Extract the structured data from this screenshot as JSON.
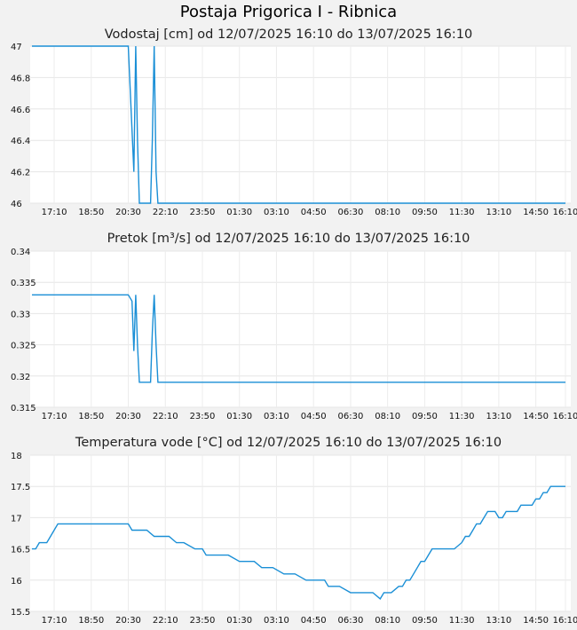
{
  "title": "Postaja Prigorica I - Ribnica",
  "series_color": "#1a8fd6",
  "chart_data": [
    {
      "type": "line",
      "title": "Vodostaj [cm] od 12/07/2025 16:10 do 13/07/2025 16:10",
      "x_ticks": [
        "17:10",
        "18:50",
        "20:30",
        "22:10",
        "23:50",
        "01:30",
        "03:10",
        "04:50",
        "06:30",
        "08:10",
        "09:50",
        "11:30",
        "13:10",
        "14:50",
        "16:10"
      ],
      "y_ticks": [
        "47",
        "46.8",
        "46.6",
        "46.4",
        "46.2",
        "46"
      ],
      "ylim": [
        46,
        47
      ],
      "grid": true,
      "x": [
        "16:10",
        "19:00",
        "20:30",
        "20:45",
        "20:50",
        "20:55",
        "21:00",
        "21:05",
        "21:10",
        "21:20",
        "21:30",
        "21:35",
        "21:40",
        "21:45",
        "21:50",
        "21:55",
        "22:00",
        "16:10"
      ],
      "y": [
        47,
        47,
        47,
        46.2,
        47,
        46.4,
        46,
        46,
        46,
        46,
        46,
        46.4,
        47,
        46.2,
        46,
        46,
        46,
        46
      ]
    },
    {
      "type": "line",
      "title": "Pretok [m³/s] od 12/07/2025 16:10 do 13/07/2025 16:10",
      "x_ticks": [
        "17:10",
        "18:50",
        "20:30",
        "22:10",
        "23:50",
        "01:30",
        "03:10",
        "04:50",
        "06:30",
        "08:10",
        "09:50",
        "11:30",
        "13:10",
        "14:50",
        "16:10"
      ],
      "y_ticks": [
        "0.34",
        "0.335",
        "0.33",
        "0.325",
        "0.32",
        "0.315"
      ],
      "ylim": [
        0.315,
        0.34
      ],
      "grid": true,
      "x": [
        "16:10",
        "19:00",
        "20:30",
        "20:40",
        "20:45",
        "20:50",
        "20:55",
        "21:00",
        "21:05",
        "21:10",
        "21:20",
        "21:30",
        "21:35",
        "21:40",
        "21:45",
        "21:50",
        "21:55",
        "22:00",
        "16:10"
      ],
      "y": [
        0.333,
        0.333,
        0.333,
        0.332,
        0.324,
        0.333,
        0.325,
        0.319,
        0.319,
        0.319,
        0.319,
        0.319,
        0.327,
        0.333,
        0.325,
        0.319,
        0.319,
        0.319,
        0.319
      ]
    },
    {
      "type": "line",
      "title": "Temperatura vode [°C] od 12/07/2025 16:10 do 13/07/2025 16:10",
      "x_ticks": [
        "17:10",
        "18:50",
        "20:30",
        "22:10",
        "23:50",
        "01:30",
        "03:10",
        "04:50",
        "06:30",
        "08:10",
        "09:50",
        "11:30",
        "13:10",
        "14:50",
        "16:10"
      ],
      "y_ticks": [
        "18",
        "17.5",
        "17",
        "16.5",
        "16",
        "15.5"
      ],
      "ylim": [
        15.5,
        18
      ],
      "grid": true,
      "x": [
        "16:10",
        "16:20",
        "16:30",
        "16:50",
        "17:00",
        "17:10",
        "17:20",
        "18:00",
        "20:30",
        "20:40",
        "21:00",
        "21:20",
        "21:40",
        "22:00",
        "22:20",
        "22:40",
        "23:00",
        "23:30",
        "23:50",
        "00:00",
        "00:50",
        "01:00",
        "01:30",
        "01:50",
        "02:10",
        "02:30",
        "03:00",
        "03:30",
        "04:00",
        "04:30",
        "05:00",
        "05:20",
        "05:30",
        "05:50",
        "06:00",
        "06:30",
        "06:50",
        "07:10",
        "07:30",
        "07:50",
        "08:00",
        "08:10",
        "08:20",
        "08:40",
        "08:50",
        "09:00",
        "09:10",
        "09:20",
        "09:30",
        "09:40",
        "09:50",
        "10:00",
        "10:10",
        "10:20",
        "10:30",
        "10:40",
        "10:50",
        "11:10",
        "11:30",
        "11:40",
        "11:50",
        "12:00",
        "12:10",
        "12:20",
        "12:30",
        "12:40",
        "12:50",
        "13:00",
        "13:10",
        "13:20",
        "13:30",
        "13:40",
        "13:50",
        "14:00",
        "14:10",
        "14:20",
        "14:40",
        "14:50",
        "15:00",
        "15:10",
        "15:20",
        "15:30",
        "15:40",
        "15:50",
        "16:00",
        "16:10"
      ],
      "y": [
        16.5,
        16.5,
        16.6,
        16.6,
        16.7,
        16.8,
        16.9,
        16.9,
        16.9,
        16.8,
        16.8,
        16.8,
        16.7,
        16.7,
        16.7,
        16.6,
        16.6,
        16.5,
        16.5,
        16.4,
        16.4,
        16.4,
        16.3,
        16.3,
        16.3,
        16.2,
        16.2,
        16.1,
        16.1,
        16.0,
        16.0,
        16.0,
        15.9,
        15.9,
        15.9,
        15.8,
        15.8,
        15.8,
        15.8,
        15.7,
        15.8,
        15.8,
        15.8,
        15.9,
        15.9,
        16.0,
        16.0,
        16.1,
        16.2,
        16.3,
        16.3,
        16.4,
        16.5,
        16.5,
        16.5,
        16.5,
        16.5,
        16.5,
        16.6,
        16.7,
        16.7,
        16.8,
        16.9,
        16.9,
        17.0,
        17.1,
        17.1,
        17.1,
        17.0,
        17.0,
        17.1,
        17.1,
        17.1,
        17.1,
        17.2,
        17.2,
        17.2,
        17.3,
        17.3,
        17.4,
        17.4,
        17.5,
        17.5,
        17.5,
        17.5,
        17.5
      ]
    }
  ]
}
